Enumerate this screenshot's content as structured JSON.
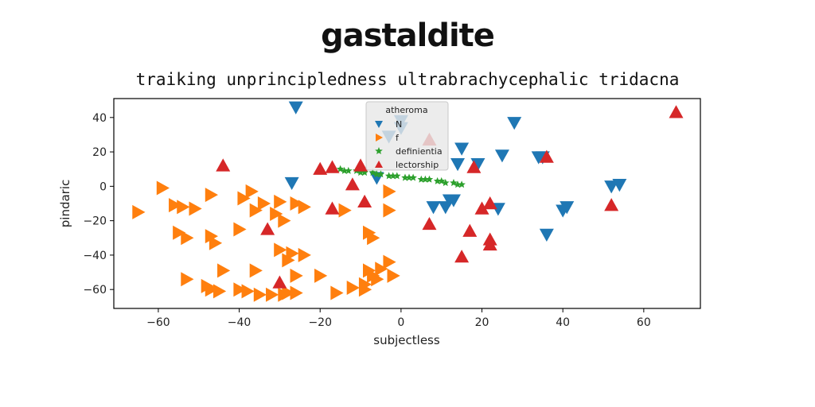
{
  "chart_data": {
    "type": "scatter",
    "title": "gastaldite",
    "subtitle": "traiking unprincipledness ultrabrachycephalic tridacna",
    "xlabel": "subjectless",
    "ylabel": "pindaric",
    "xlim": [
      -71,
      74
    ],
    "ylim": [
      -71,
      51
    ],
    "xticks": [
      -60,
      -40,
      -20,
      0,
      20,
      40,
      60
    ],
    "yticks": [
      -60,
      -40,
      -20,
      0,
      20,
      40
    ],
    "grid": false,
    "legend": {
      "title": "atheroma",
      "placement": "top-center"
    },
    "series": [
      {
        "name": "N",
        "marker": "triangle-down",
        "color": "#1f77b4",
        "points": [
          [
            -26,
            46
          ],
          [
            -27,
            2
          ],
          [
            0,
            38
          ],
          [
            0,
            34
          ],
          [
            -6,
            5
          ],
          [
            -3,
            29
          ],
          [
            14,
            13
          ],
          [
            15,
            22
          ],
          [
            19,
            13
          ],
          [
            25,
            18
          ],
          [
            28,
            37
          ],
          [
            34,
            17
          ],
          [
            35,
            17
          ],
          [
            36,
            -28
          ],
          [
            8,
            -12
          ],
          [
            11,
            -12
          ],
          [
            12,
            -8
          ],
          [
            13,
            -8
          ],
          [
            24,
            -13
          ],
          [
            40,
            -14
          ],
          [
            41,
            -12
          ],
          [
            52,
            0
          ],
          [
            54,
            1
          ]
        ]
      },
      {
        "name": "f",
        "marker": "triangle-right",
        "color": "#ff7f0e",
        "points": [
          [
            -65,
            -15
          ],
          [
            -59,
            -1
          ],
          [
            -56,
            -11
          ],
          [
            -54,
            -12
          ],
          [
            -51,
            -13
          ],
          [
            -55,
            -27
          ],
          [
            -53,
            -30
          ],
          [
            -47,
            -29
          ],
          [
            -46,
            -33
          ],
          [
            -47,
            -5
          ],
          [
            -44,
            -49
          ],
          [
            -53,
            -54
          ],
          [
            -48,
            -58
          ],
          [
            -47,
            -60
          ],
          [
            -45,
            -61
          ],
          [
            -40,
            -25
          ],
          [
            -39,
            -7
          ],
          [
            -36,
            -14
          ],
          [
            -34,
            -10
          ],
          [
            -37,
            -3
          ],
          [
            -36,
            -49
          ],
          [
            -40,
            -60
          ],
          [
            -38,
            -61
          ],
          [
            -35,
            -63
          ],
          [
            -32,
            -63
          ],
          [
            -29,
            -63
          ],
          [
            -28,
            -62
          ],
          [
            -26,
            -62
          ],
          [
            -31,
            -16
          ],
          [
            -29,
            -20
          ],
          [
            -30,
            -9
          ],
          [
            -26,
            -10
          ],
          [
            -24,
            -12
          ],
          [
            -30,
            -37
          ],
          [
            -28,
            -43
          ],
          [
            -27,
            -39
          ],
          [
            -24,
            -40
          ],
          [
            -26,
            -52
          ],
          [
            -20,
            -52
          ],
          [
            -16,
            -62
          ],
          [
            -14,
            -14
          ],
          [
            -12,
            -59
          ],
          [
            -9,
            -57
          ],
          [
            -6,
            -54
          ],
          [
            -8,
            -49
          ],
          [
            -7,
            -52
          ],
          [
            -5,
            -48
          ],
          [
            -3,
            -44
          ],
          [
            -2,
            -52
          ],
          [
            -9,
            -60
          ],
          [
            -8,
            -27
          ],
          [
            -7,
            -30
          ],
          [
            -3,
            -3
          ],
          [
            -3,
            -14
          ]
        ]
      },
      {
        "name": "definientia",
        "marker": "star",
        "color": "#2ca02c",
        "points": [
          [
            -15,
            10
          ],
          [
            -13,
            9
          ],
          [
            -11,
            9
          ],
          [
            -9,
            8
          ],
          [
            -7,
            8
          ],
          [
            -5,
            7
          ],
          [
            -3,
            6
          ],
          [
            -1,
            6
          ],
          [
            1,
            5
          ],
          [
            3,
            5
          ],
          [
            5,
            4
          ],
          [
            7,
            4
          ],
          [
            9,
            3
          ],
          [
            11,
            2
          ],
          [
            13,
            2
          ],
          [
            15,
            1
          ],
          [
            -14,
            9
          ],
          [
            -10,
            8
          ],
          [
            -6,
            7
          ],
          [
            -2,
            6
          ],
          [
            2,
            5
          ],
          [
            6,
            4
          ],
          [
            10,
            3
          ],
          [
            14,
            1
          ]
        ]
      },
      {
        "name": "lectorship",
        "marker": "triangle-up",
        "color": "#d62728",
        "points": [
          [
            -44,
            12
          ],
          [
            -20,
            10
          ],
          [
            -17,
            11
          ],
          [
            -12,
            1
          ],
          [
            -10,
            12
          ],
          [
            -9,
            -9
          ],
          [
            -17,
            -13
          ],
          [
            -33,
            -25
          ],
          [
            -30,
            -56
          ],
          [
            7,
            27
          ],
          [
            7,
            -22
          ],
          [
            15,
            -41
          ],
          [
            17,
            -26
          ],
          [
            18,
            11
          ],
          [
            20,
            -13
          ],
          [
            22,
            -10
          ],
          [
            22,
            -31
          ],
          [
            22,
            -34
          ],
          [
            36,
            17
          ],
          [
            52,
            -11
          ],
          [
            68,
            43
          ]
        ]
      }
    ]
  }
}
